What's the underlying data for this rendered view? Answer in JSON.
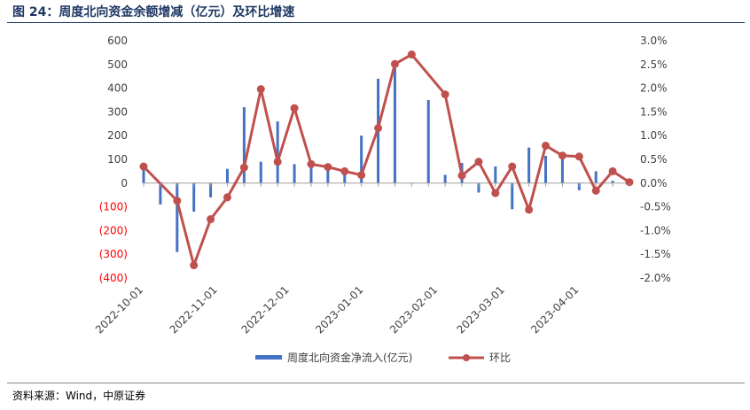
{
  "header": {
    "title": "图 24：周度北向资金余额增减（亿元）及环比增速"
  },
  "footer": {
    "source": "资料来源：Wind，中原证券"
  },
  "colors": {
    "bar": "#4472c4",
    "line": "#c0504d",
    "negative_tick": "#ff0000",
    "title": "#1f3864"
  },
  "chart_data": {
    "type": "bar",
    "title": "",
    "xlabel": "",
    "ylabel": "",
    "ylim": [
      -400,
      600
    ],
    "y2lim": [
      -0.02,
      0.03
    ],
    "y_ticks": [
      "600",
      "500",
      "400",
      "300",
      "200",
      "100",
      "0",
      "(100)",
      "(200)",
      "(300)",
      "(400)"
    ],
    "y2_ticks": [
      "3.0%",
      "2.5%",
      "2.0%",
      "1.5%",
      "1.0%",
      "0.5%",
      "0.0%",
      "-0.5%",
      "-1.0%",
      "-1.5%",
      "-2.0%"
    ],
    "x_tick_labels": [
      "2022-10-01",
      "2022-11-01",
      "2022-12-01",
      "2023-01-01",
      "2023-02-01",
      "2023-03-01",
      "2023-04-01"
    ],
    "legend_position": "bottom",
    "series": [
      {
        "name": "周度北向资金净流入(亿元)",
        "type": "bar",
        "axis": "left",
        "x": [
          "2022-10-01",
          "2022-10-08",
          "2022-10-15",
          "2022-10-22",
          "2022-10-29",
          "2022-11-05",
          "2022-11-12",
          "2022-11-19",
          "2022-11-26",
          "2022-12-03",
          "2022-12-10",
          "2022-12-17",
          "2022-12-24",
          "2022-12-31",
          "2023-01-07",
          "2023-01-14",
          "2023-01-21",
          "2023-01-28",
          "2023-02-04",
          "2023-02-11",
          "2023-02-18",
          "2023-02-25",
          "2023-03-04",
          "2023-03-11",
          "2023-03-18",
          "2023-03-25",
          "2023-04-01",
          "2023-04-08",
          "2023-04-15",
          "2023-04-22"
        ],
        "values": [
          70,
          -90,
          -290,
          -120,
          -60,
          60,
          320,
          90,
          260,
          80,
          70,
          60,
          40,
          200,
          440,
          485,
          0,
          350,
          35,
          85,
          -40,
          70,
          -110,
          150,
          115,
          110,
          -30,
          50,
          10,
          null
        ]
      },
      {
        "name": "环比",
        "type": "line",
        "axis": "right",
        "x": [
          "2022-10-01",
          "2022-10-08",
          "2022-10-15",
          "2022-10-22",
          "2022-10-29",
          "2022-11-05",
          "2022-11-12",
          "2022-11-19",
          "2022-11-26",
          "2022-12-03",
          "2022-12-10",
          "2022-12-17",
          "2022-12-24",
          "2022-12-31",
          "2023-01-07",
          "2023-01-14",
          "2023-01-21",
          "2023-01-28",
          "2023-02-04",
          "2023-02-11",
          "2023-02-18",
          "2023-02-25",
          "2023-03-04",
          "2023-03-11",
          "2023-03-18",
          "2023-03-25",
          "2023-04-01",
          "2023-04-08",
          "2023-04-15",
          "2023-04-22"
        ],
        "values": [
          0.0035,
          null,
          -0.0037,
          -0.0173,
          -0.0076,
          -0.003,
          0.0033,
          0.0198,
          0.0045,
          0.0158,
          0.004,
          0.0034,
          0.0025,
          0.0017,
          0.0116,
          0.0251,
          0.0271,
          null,
          0.0187,
          0.0016,
          0.0045,
          -0.0021,
          0.0035,
          -0.0056,
          0.0079,
          0.0058,
          0.0056,
          -0.0016,
          0.0025,
          0.0002
        ]
      }
    ]
  }
}
